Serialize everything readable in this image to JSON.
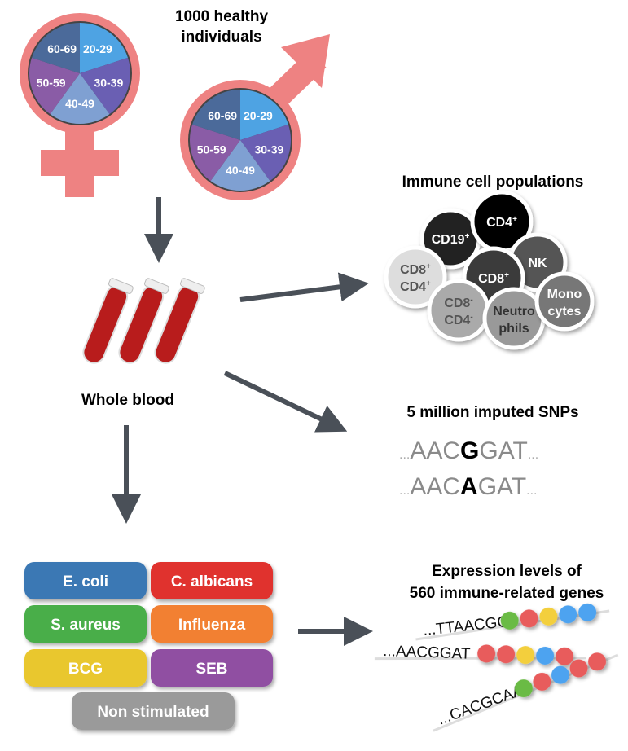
{
  "cohort": {
    "title_line1": "1000 healthy individuals",
    "title_line1_a": "1000 healthy",
    "title_line2": "individuals",
    "age_groups": [
      "20-29",
      "30-39",
      "40-49",
      "50-59",
      "60-69"
    ],
    "age_colors": [
      "#4ea3e3",
      "#6a5fb3",
      "#7fa0d2",
      "#8a5ca6",
      "#4b6a9a"
    ],
    "symbol_color": "#ee8282"
  },
  "blood": {
    "label": "Whole blood"
  },
  "immune": {
    "title": "Immune cell populations",
    "cells": [
      {
        "label1": "CD19",
        "sup1": "+",
        "color": "#222222",
        "text": "#ffffff"
      },
      {
        "label1": "CD4",
        "sup1": "+",
        "color": "#000000",
        "text": "#ffffff"
      },
      {
        "label1": "NK",
        "color": "#555555",
        "text": "#ffffff"
      },
      {
        "label1": "CD8",
        "sup1": "+",
        "color": "#3a3a3a",
        "text": "#ffffff"
      },
      {
        "label1": "CD8",
        "sup1": "+",
        "label2": "CD4",
        "sup2": "+",
        "color": "#dddddd",
        "text": "#555555"
      },
      {
        "label1": "CD8",
        "sup1": "-",
        "label2": "CD4",
        "sup2": "-",
        "color": "#aaaaaa",
        "text": "#555555"
      },
      {
        "label1": "Neutro",
        "label2": "phils",
        "color": "#999999",
        "text": "#333333"
      },
      {
        "label1": "Mono",
        "label2": "cytes",
        "color": "#777777",
        "text": "#ffffff"
      }
    ]
  },
  "snps": {
    "title": "5 million imputed SNPs",
    "seq1": {
      "left": "AAC",
      "variant": "G",
      "right": "GAT"
    },
    "seq2": {
      "left": "AAC",
      "variant": "A",
      "right": "GAT"
    },
    "dots": "..."
  },
  "stimuli": [
    {
      "label": "E. coli",
      "color": "#3a78b4"
    },
    {
      "label": "C. albicans",
      "color": "#e0302e"
    },
    {
      "label": "S. aureus",
      "color": "#4aae4a"
    },
    {
      "label": "Influenza",
      "color": "#f28030"
    },
    {
      "label": "BCG",
      "color": "#e9c72e"
    },
    {
      "label": "SEB",
      "color": "#9050a2"
    },
    {
      "label": "Non stimulated",
      "color": "#9a9a9a"
    }
  ],
  "expression": {
    "title_line1": "Expression levels of",
    "title_line2": "560 immune-related genes",
    "reads": [
      {
        "seq": "...TTAACGG",
        "beads": [
          "#6bbb45",
          "#e85c5c",
          "#f3cf3e",
          "#4ea3f0",
          "#4ea3f0"
        ]
      },
      {
        "seq": "...AACGGAT",
        "beads": [
          "#e85c5c",
          "#e85c5c",
          "#f3cf3e",
          "#4ea3f0",
          "#e85c5c"
        ]
      },
      {
        "seq": "...CACGCAA",
        "beads": [
          "#6bbb45",
          "#e85c5c",
          "#4ea3f0",
          "#e85c5c",
          "#e85c5c"
        ]
      }
    ]
  }
}
